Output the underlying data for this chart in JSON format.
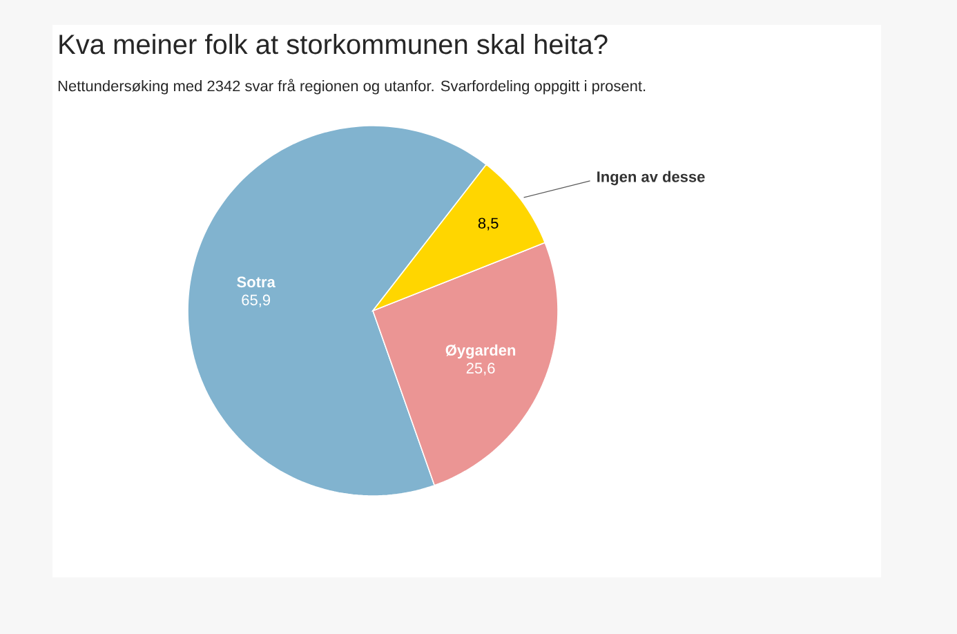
{
  "chart_data": {
    "type": "pie",
    "title": "Kva meiner folk at storkommunen skal heita?",
    "subtitle": "Nettundersøking med 2342 svar frå regionen og utanfor. Svarfordeling oppgitt i prosent.",
    "categories": [
      "Sotra",
      "Øygarden",
      "Ingen av desse"
    ],
    "values": [
      65.9,
      25.6,
      8.5
    ],
    "value_labels": [
      "65,9",
      "25,6",
      "8,5"
    ],
    "colors": [
      "#81b3cf",
      "#eb9594",
      "#ffd600"
    ]
  }
}
